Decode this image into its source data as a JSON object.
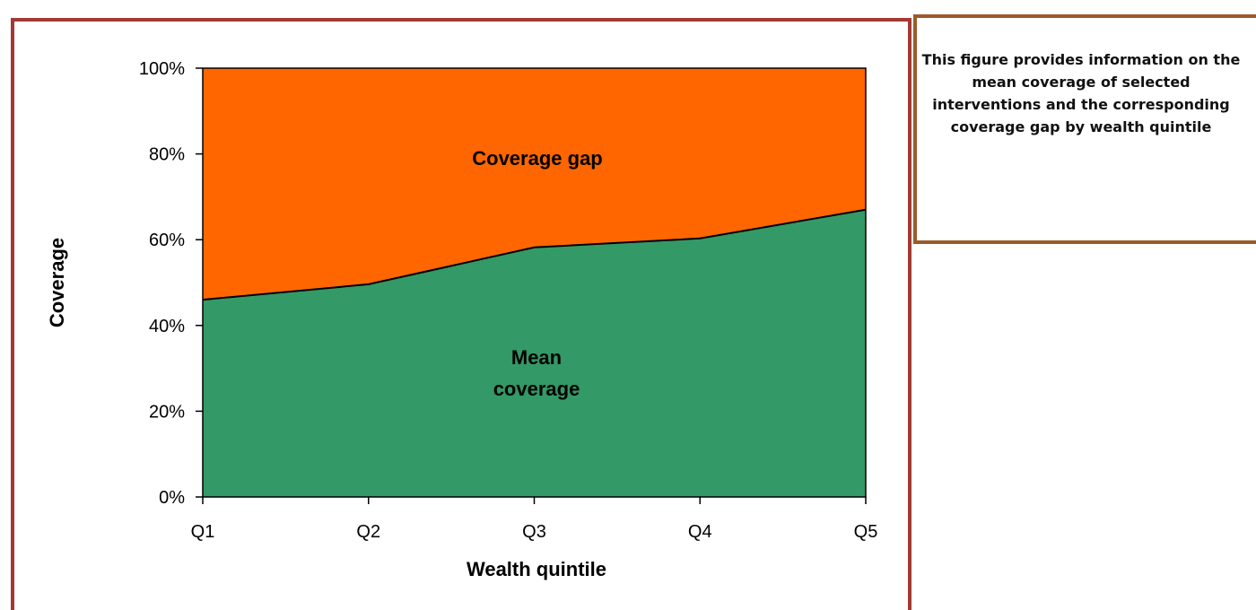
{
  "info": {
    "text": "This figure provides information on the mean coverage of selected interventions and the corresponding coverage gap by wealth quintile"
  },
  "colors": {
    "gap": "#ff6600",
    "coverage": "#339966",
    "frame": "#a33a33",
    "info_border": "#9b5a2a"
  },
  "chart_data": {
    "type": "area",
    "categories": [
      "Q1",
      "Q2",
      "Q3",
      "Q4",
      "Q5"
    ],
    "series": [
      {
        "name": "Mean coverage",
        "values": [
          46,
          49.6,
          58.2,
          60.3,
          67
        ]
      },
      {
        "name": "Coverage gap",
        "values": [
          54,
          50.4,
          41.8,
          39.7,
          33
        ]
      }
    ],
    "area_labels": {
      "gap": "Coverage gap",
      "coverage_line1": "Mean",
      "coverage_line2": "coverage"
    },
    "xlabel": "Wealth quintile",
    "ylabel": "Coverage",
    "ylim": [
      0,
      100
    ],
    "yticks": [
      "0%",
      "20%",
      "40%",
      "60%",
      "80%",
      "100%"
    ],
    "stacked": true,
    "grid": false
  }
}
